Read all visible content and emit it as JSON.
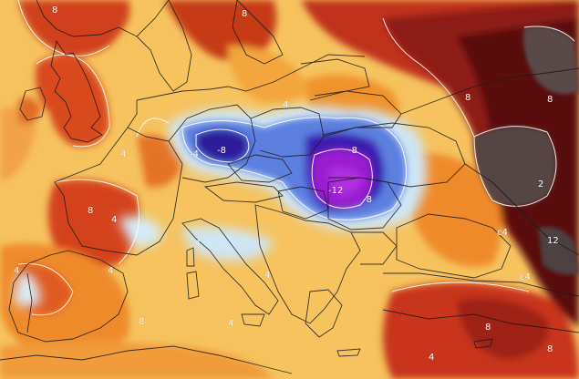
{
  "map": {
    "type": "temperature-anomaly",
    "palette": {
      "sea_land_base": "#f6c35f",
      "warm_orange": "#ef8a2a",
      "warm_red": "#d4421b",
      "hot_darkred": "#8e1a12",
      "extreme_maroon": "#4a1010",
      "extreme_gray": "#5a4a4a",
      "cool_lightblue": "#cfe6f6",
      "cold_blue": "#4466dd",
      "very_cold_indigo": "#3321a8",
      "coldest_purple": "#9a1fd0",
      "contour": "#ffffff",
      "border": "#1a1a1a"
    },
    "contour_labels": [
      {
        "id": "norway-8",
        "text": "8"
      },
      {
        "id": "baltic-8",
        "text": "8"
      },
      {
        "id": "belarus-8",
        "text": "8"
      },
      {
        "id": "russia-8",
        "text": "8"
      },
      {
        "id": "russia-2",
        "text": "2"
      },
      {
        "id": "caspian-12",
        "text": "12"
      },
      {
        "id": "ukraine-c4",
        "text": "c4"
      },
      {
        "id": "turkey-c4",
        "text": "c4"
      },
      {
        "id": "germany-m8",
        "text": "-8"
      },
      {
        "id": "germany-m4",
        "text": "-4"
      },
      {
        "id": "poland-m8",
        "text": "-8"
      },
      {
        "id": "hungary-m12",
        "text": "-12"
      },
      {
        "id": "romania-m8",
        "text": "-8"
      },
      {
        "id": "spain-8",
        "text": "8"
      },
      {
        "id": "spain-4",
        "text": "4"
      },
      {
        "id": "spain-4b",
        "text": "4"
      },
      {
        "id": "france-m4",
        "text": "-4"
      },
      {
        "id": "italy-4",
        "text": "4"
      },
      {
        "id": "greece-4",
        "text": "4"
      },
      {
        "id": "turkey-8",
        "text": "8"
      },
      {
        "id": "turkey-8b",
        "text": "8"
      },
      {
        "id": "africa-8",
        "text": "8"
      },
      {
        "id": "africa-4",
        "text": "4"
      },
      {
        "id": "uk-4",
        "text": "4"
      },
      {
        "id": "iberia-4",
        "text": "4"
      },
      {
        "id": "scand-4",
        "text": "4"
      }
    ]
  }
}
